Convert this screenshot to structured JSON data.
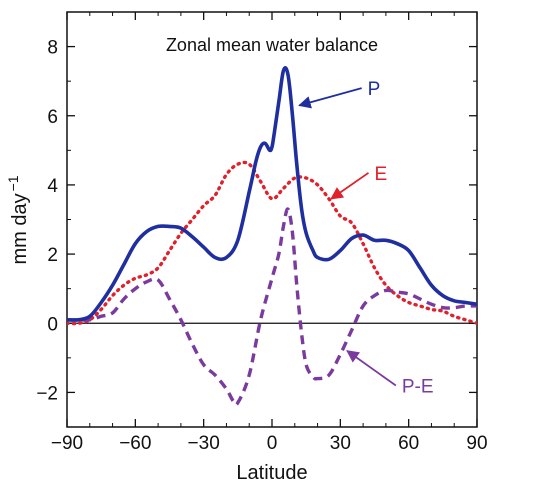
{
  "chart_data": {
    "type": "line",
    "title": "Zonal mean water balance",
    "xlabel": "Latitude",
    "ylabel": "mm day",
    "ylabel_superscript": "−1",
    "xlim": [
      -90,
      90
    ],
    "ylim": [
      -3,
      9
    ],
    "xticks": [
      -90,
      -60,
      -30,
      0,
      30,
      60,
      90
    ],
    "xtick_labels": [
      "−90",
      "−60",
      "−30",
      "0",
      "30",
      "60",
      "90"
    ],
    "yticks": [
      -2,
      0,
      2,
      4,
      6,
      8
    ],
    "ytick_labels": [
      "−2",
      "0",
      "2",
      "4",
      "6",
      "8"
    ],
    "zero_line": true,
    "grid": false,
    "series": [
      {
        "name": "P",
        "color": "#1f2fa0",
        "style": "solid",
        "x": [
          -90,
          -85,
          -80,
          -75,
          -70,
          -65,
          -60,
          -55,
          -50,
          -45,
          -40,
          -35,
          -30,
          -25,
          -20,
          -15,
          -10,
          -7,
          -5,
          -3,
          -1,
          0,
          1,
          3,
          5,
          7,
          9,
          11,
          13,
          15,
          18,
          20,
          25,
          30,
          35,
          40,
          45,
          50,
          55,
          60,
          65,
          70,
          75,
          80,
          85,
          90
        ],
        "y": [
          0.1,
          0.1,
          0.2,
          0.6,
          1.1,
          1.7,
          2.3,
          2.65,
          2.8,
          2.8,
          2.75,
          2.5,
          2.2,
          1.9,
          1.9,
          2.4,
          3.8,
          4.7,
          5.1,
          5.2,
          5.0,
          5.1,
          5.5,
          6.4,
          7.3,
          7.2,
          6.0,
          4.5,
          3.3,
          2.6,
          2.1,
          1.9,
          1.85,
          2.1,
          2.45,
          2.55,
          2.4,
          2.4,
          2.3,
          2.1,
          1.6,
          1.1,
          0.8,
          0.65,
          0.6,
          0.55
        ]
      },
      {
        "name": "E",
        "color": "#e0202a",
        "style": "dotted",
        "x": [
          -90,
          -85,
          -80,
          -75,
          -70,
          -65,
          -60,
          -55,
          -50,
          -45,
          -40,
          -35,
          -30,
          -25,
          -20,
          -15,
          -10,
          -5,
          0,
          5,
          10,
          15,
          20,
          25,
          30,
          35,
          40,
          45,
          50,
          55,
          60,
          65,
          70,
          75,
          80,
          85,
          90
        ],
        "y": [
          0.0,
          0.0,
          0.1,
          0.4,
          0.8,
          1.1,
          1.3,
          1.4,
          1.6,
          2.1,
          2.6,
          3.0,
          3.4,
          3.7,
          4.3,
          4.6,
          4.6,
          4.1,
          3.6,
          3.9,
          4.2,
          4.2,
          4.0,
          3.6,
          3.1,
          2.9,
          2.3,
          1.6,
          1.1,
          0.8,
          0.6,
          0.5,
          0.4,
          0.35,
          0.2,
          0.1,
          0.0
        ]
      },
      {
        "name": "P-E",
        "color": "#7a3a9e",
        "style": "dashed",
        "x": [
          -90,
          -85,
          -80,
          -75,
          -70,
          -65,
          -60,
          -55,
          -50,
          -45,
          -40,
          -35,
          -30,
          -25,
          -20,
          -17,
          -15,
          -10,
          -5,
          0,
          3,
          5,
          7,
          9,
          11,
          13,
          15,
          18,
          20,
          25,
          30,
          35,
          40,
          45,
          50,
          55,
          60,
          65,
          70,
          75,
          80,
          85,
          90
        ],
        "y": [
          0.1,
          0.1,
          0.1,
          0.2,
          0.3,
          0.7,
          1.0,
          1.2,
          1.25,
          0.7,
          0.1,
          -0.6,
          -1.2,
          -1.5,
          -1.9,
          -2.25,
          -2.3,
          -1.5,
          0.1,
          1.3,
          2.0,
          2.8,
          3.3,
          2.6,
          1.0,
          -0.3,
          -1.2,
          -1.55,
          -1.6,
          -1.5,
          -0.9,
          -0.2,
          0.5,
          0.8,
          0.95,
          0.9,
          0.85,
          0.7,
          0.55,
          0.45,
          0.45,
          0.5,
          0.5
        ]
      }
    ],
    "annotations": [
      {
        "text": "P",
        "series": "P",
        "color": "#1f2fa0",
        "label_at": [
          42,
          6.8
        ],
        "arrow_to": [
          12,
          6.3
        ]
      },
      {
        "text": "E",
        "series": "E",
        "color": "#e0202a",
        "label_at": [
          45,
          4.35
        ],
        "arrow_to": [
          26,
          3.6
        ]
      },
      {
        "text": "P-E",
        "series": "P-E",
        "color": "#7a3a9e",
        "label_at": [
          57,
          -1.8
        ],
        "arrow_to": [
          33,
          -0.8
        ]
      }
    ]
  }
}
